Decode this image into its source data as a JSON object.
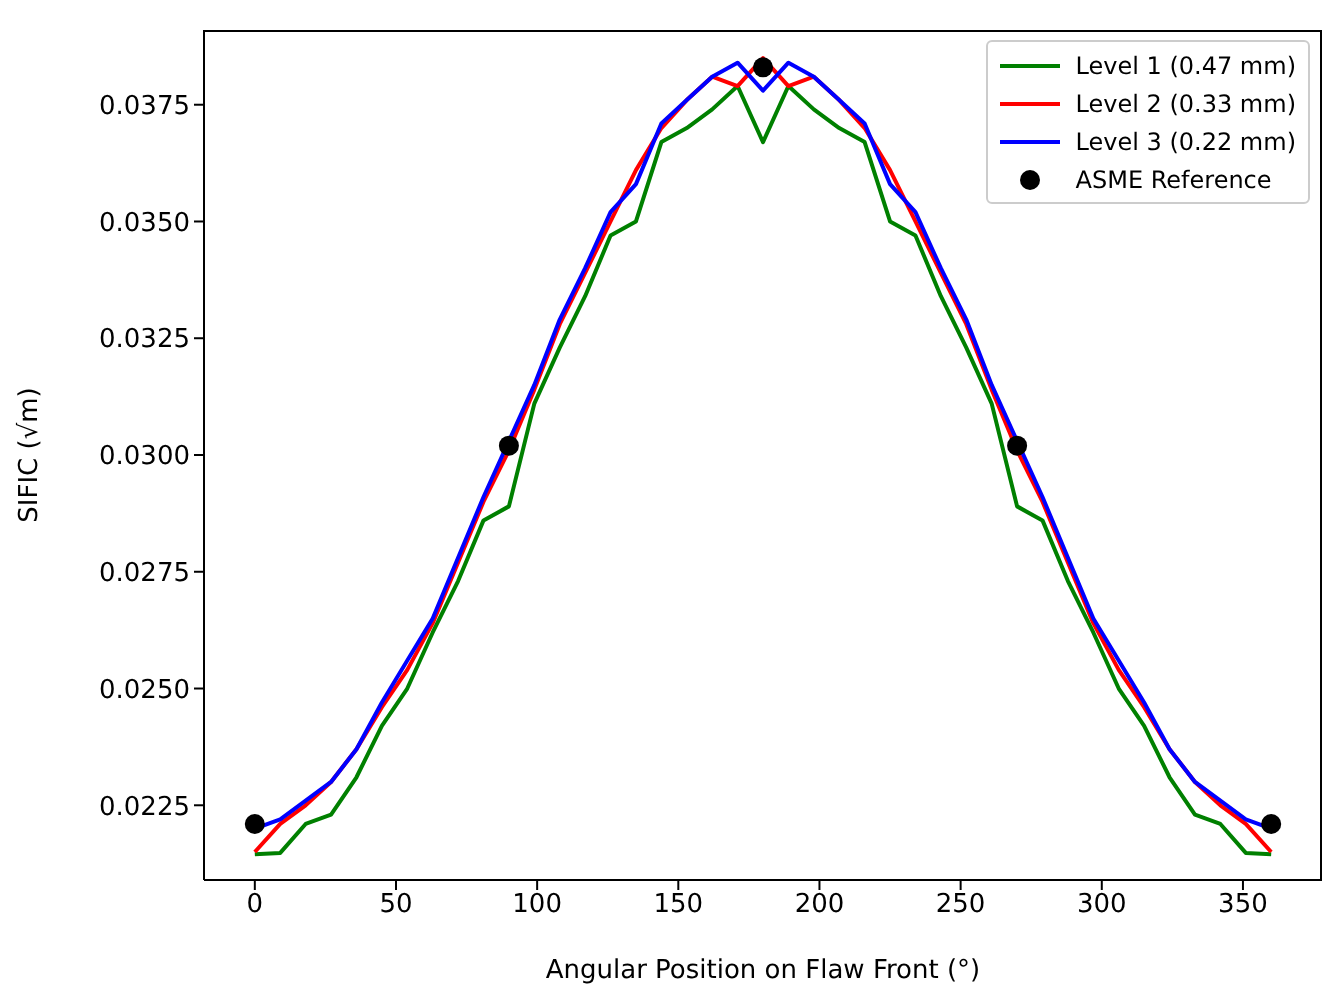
{
  "chart_data": {
    "type": "line",
    "xlabel": "Angular Position on Flaw Front (°)",
    "ylabel": "SIFIC (√m)",
    "xlim": [
      -18,
      378
    ],
    "xticks": [
      0,
      50,
      100,
      150,
      200,
      250,
      300,
      350
    ],
    "ylim": [
      0.0209,
      0.0391
    ],
    "yticks": [
      {
        "value": 0.0225,
        "label": "0.0225"
      },
      {
        "value": 0.025,
        "label": "0.0250"
      },
      {
        "value": 0.0275,
        "label": "0.0275"
      },
      {
        "value": 0.03,
        "label": "0.0300"
      },
      {
        "value": 0.0325,
        "label": "0.0325"
      },
      {
        "value": 0.035,
        "label": "0.0350"
      },
      {
        "value": 0.0375,
        "label": "0.0375"
      }
    ],
    "grid": false,
    "legend": "top right",
    "line_style": "solid",
    "x": [
      0,
      9,
      18,
      27,
      36,
      45,
      54,
      63,
      72,
      81,
      90,
      99,
      108,
      117,
      126,
      135,
      144,
      153,
      162,
      171,
      180,
      189,
      198,
      207,
      216,
      225,
      234,
      243,
      252,
      261,
      270,
      279,
      288,
      297,
      306,
      315,
      324,
      333,
      342,
      351,
      360
    ],
    "series": [
      {
        "name": "Level 1 (0.47 mm)",
        "color": "#008000",
        "values": [
          0.02145,
          0.02148,
          0.0221,
          0.0223,
          0.0231,
          0.0242,
          0.025,
          0.0262,
          0.0273,
          0.0286,
          0.0289,
          0.0311,
          0.0323,
          0.0334,
          0.0347,
          0.035,
          0.0367,
          0.037,
          0.0374,
          0.0379,
          0.0367,
          0.0379,
          0.0374,
          0.037,
          0.0367,
          0.035,
          0.0347,
          0.0334,
          0.0323,
          0.0311,
          0.0289,
          0.0286,
          0.0273,
          0.0262,
          0.025,
          0.0242,
          0.0231,
          0.0223,
          0.0221,
          0.02148,
          0.02145
        ]
      },
      {
        "name": "Level 2 (0.33 mm)",
        "color": "#ff0000",
        "values": [
          0.0215,
          0.0221,
          0.0225,
          0.023,
          0.0237,
          0.0246,
          0.0254,
          0.0264,
          0.0277,
          0.029,
          0.0301,
          0.0314,
          0.0328,
          0.0339,
          0.035,
          0.0361,
          0.037,
          0.0376,
          0.0381,
          0.0379,
          0.0385,
          0.0379,
          0.0381,
          0.0376,
          0.037,
          0.0361,
          0.035,
          0.0339,
          0.0328,
          0.0314,
          0.0301,
          0.029,
          0.0277,
          0.0264,
          0.0254,
          0.0246,
          0.0237,
          0.023,
          0.0225,
          0.0221,
          0.0215
        ]
      },
      {
        "name": "Level 3 (0.22 mm)",
        "color": "#0000ff",
        "values": [
          0.022,
          0.0222,
          0.0226,
          0.023,
          0.0237,
          0.0247,
          0.0256,
          0.0265,
          0.0278,
          0.0291,
          0.0303,
          0.0315,
          0.0329,
          0.034,
          0.0352,
          0.0358,
          0.0371,
          0.0376,
          0.0381,
          0.0384,
          0.0378,
          0.0384,
          0.0381,
          0.0376,
          0.0371,
          0.0358,
          0.0352,
          0.034,
          0.0329,
          0.0315,
          0.0303,
          0.0291,
          0.0278,
          0.0265,
          0.0256,
          0.0247,
          0.0237,
          0.023,
          0.0226,
          0.0222,
          0.022
        ]
      },
      {
        "name": "ASME Reference",
        "type": "scatter",
        "marker": "circle",
        "color": "#000000",
        "x": [
          0,
          90,
          180,
          270,
          360
        ],
        "values": [
          0.0221,
          0.0302,
          0.0383,
          0.0302,
          0.0221
        ]
      }
    ]
  }
}
